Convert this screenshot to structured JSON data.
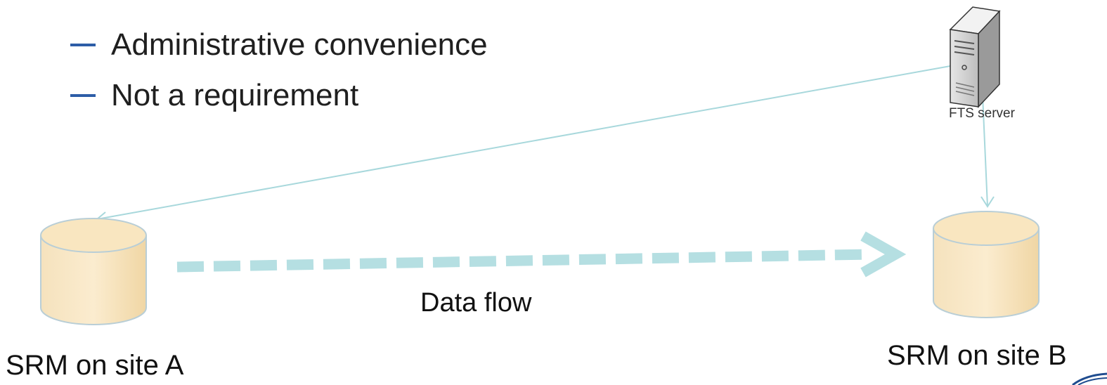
{
  "bullets": [
    {
      "text": "Administrative convenience"
    },
    {
      "text": "Not a requirement"
    }
  ],
  "fts_server": {
    "label": "FTS server",
    "icon": "server-tower-icon"
  },
  "srm_a": {
    "label": "SRM on site A",
    "icon": "database-cylinder-icon"
  },
  "srm_b": {
    "label": "SRM on site B",
    "icon": "database-cylinder-icon"
  },
  "data_flow": {
    "label": "Data flow"
  },
  "colors": {
    "bullet_dash": "#2d5da7",
    "control_line": "#a8d8dc",
    "flow_arrow": "#b5dfe2",
    "cylinder_fill": "#f7ddb0",
    "cylinder_stroke": "#b9ced6"
  }
}
